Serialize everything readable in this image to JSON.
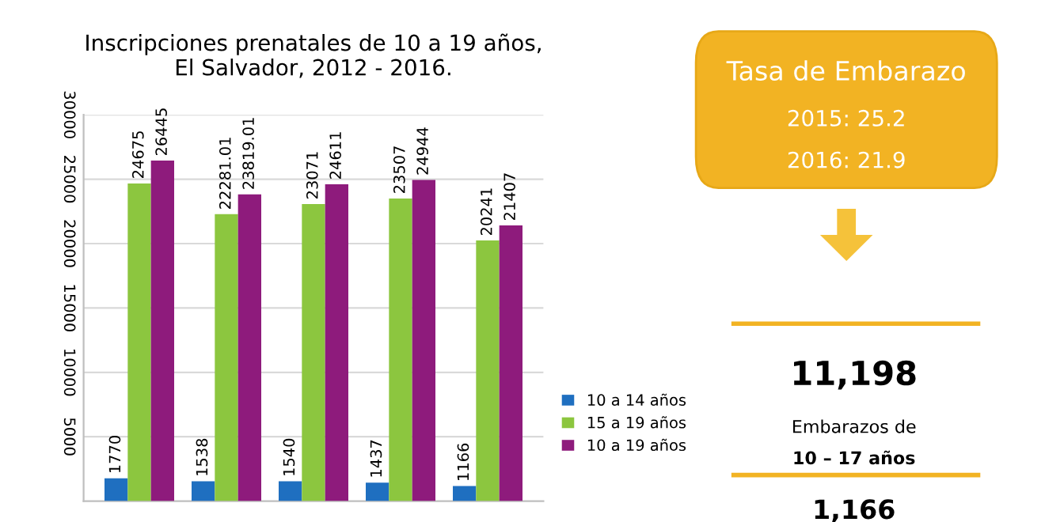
{
  "chart_data": [
    {
      "type": "bar",
      "title": "Inscripciones prenatales de 10 a 19 años,\nEl Salvador, 2012 - 2016.",
      "categories": [
        null,
        null,
        null,
        null,
        null
      ],
      "series": [
        {
          "name": "10 a 14 años",
          "color": "#1f6fc0",
          "values": [
            1770,
            1538,
            1540,
            1437,
            1166
          ]
        },
        {
          "name": "15 a 19 años",
          "color": "#8cc63f",
          "values": [
            24675,
            22281.01,
            23071,
            23507,
            20241
          ]
        },
        {
          "name": "10 a 19 años",
          "color": "#8e1b7c",
          "values": [
            26445,
            23819.01,
            24611,
            24944,
            21407
          ]
        }
      ],
      "ylim": [
        0,
        30000
      ],
      "yticks": [
        5000,
        10000,
        15000,
        20000,
        25000,
        30000
      ],
      "grid": "y",
      "legend": "right",
      "data_labels": true,
      "tick_labels": "y"
    },
    {
      "type": "other",
      "annotations": [
        "Tasa de Embarazo",
        "2015: 25.2",
        "2016: 21.9",
        "11,198",
        "Embarazos de",
        "10 – 17 años",
        "1,166"
      ]
    }
  ]
}
